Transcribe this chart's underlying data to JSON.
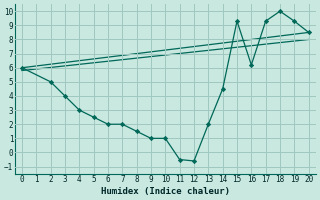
{
  "xlabel": "Humidex (Indice chaleur)",
  "bg_color": "#c8e8e0",
  "grid_color": "#a0c8c0",
  "line_color": "#006858",
  "xlim": [
    -0.5,
    20.5
  ],
  "ylim": [
    -1.5,
    10.5
  ],
  "xticks": [
    0,
    1,
    2,
    3,
    4,
    5,
    6,
    7,
    8,
    9,
    10,
    11,
    12,
    13,
    14,
    15,
    16,
    17,
    18,
    19,
    20
  ],
  "yticks": [
    -1,
    0,
    1,
    2,
    3,
    4,
    5,
    6,
    7,
    8,
    9,
    10
  ],
  "zigzag_x": [
    0,
    2,
    3,
    4,
    5,
    6,
    7,
    8,
    9,
    10,
    11,
    12,
    13,
    14,
    15,
    16,
    17,
    18,
    19,
    20
  ],
  "zigzag_y": [
    6,
    5,
    4,
    3,
    2.5,
    2,
    2,
    1.5,
    1,
    1,
    -0.5,
    -0.6,
    2,
    4.5,
    9.3,
    6.2,
    9.3,
    10,
    9.3,
    8.5
  ],
  "trend1_x": [
    0,
    20
  ],
  "trend1_y": [
    6.0,
    8.5
  ],
  "trend2_x": [
    0,
    20
  ],
  "trend2_y": [
    5.8,
    8.0
  ]
}
